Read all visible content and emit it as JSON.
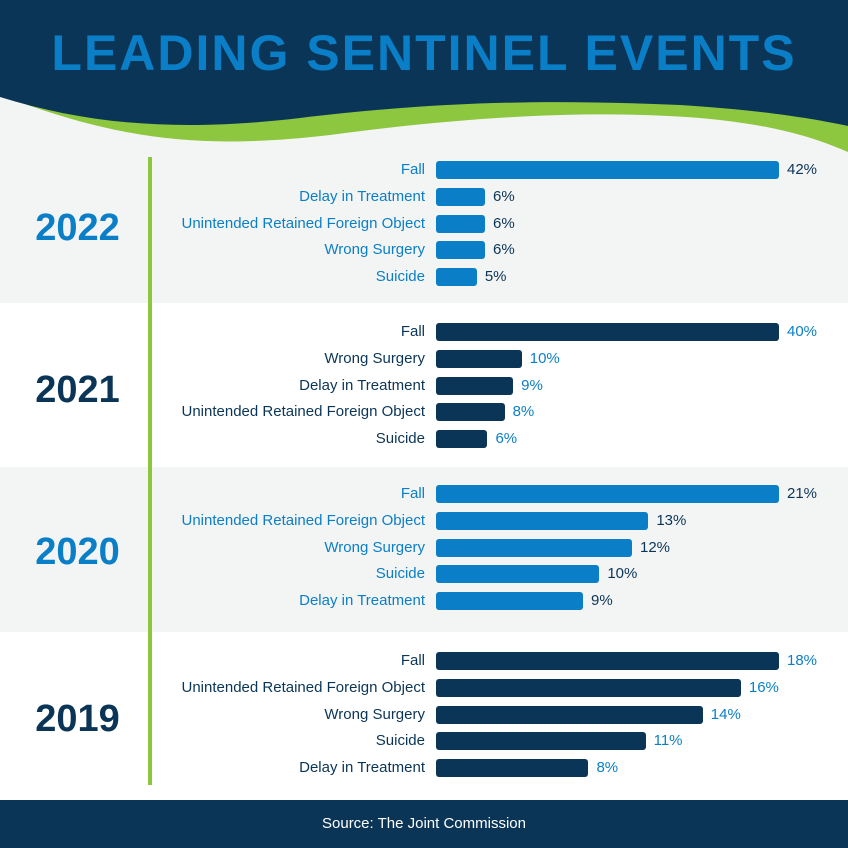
{
  "colors": {
    "navy": "#0b3557",
    "blue": "#0a7fc7",
    "green": "#8dc63f",
    "gray": "#f3f4f4"
  },
  "title": "LEADING SENTINEL EVENTS",
  "source": "Source: The Joint Commission",
  "chart_data": {
    "type": "bar",
    "orientation": "horizontal",
    "title": "LEADING SENTINEL EVENTS",
    "unit": "%",
    "groups": [
      {
        "year": "2022",
        "categories": [
          "Fall",
          "Delay in Treatment",
          "Unintended Retained Foreign Object",
          "Wrong Surgery",
          "Suicide"
        ],
        "values": [
          42,
          6,
          6,
          6,
          5
        ],
        "labels": [
          "42%",
          "6%",
          "6%",
          "6%",
          "5%"
        ]
      },
      {
        "year": "2021",
        "categories": [
          "Fall",
          "Wrong Surgery",
          "Delay in Treatment",
          "Unintended Retained Foreign Object",
          "Suicide"
        ],
        "values": [
          40,
          10,
          9,
          8,
          6
        ],
        "labels": [
          "40%",
          "10%",
          "9%",
          "8%",
          "6%"
        ]
      },
      {
        "year": "2020",
        "categories": [
          "Fall",
          "Unintended Retained Foreign Object",
          "Wrong Surgery",
          "Suicide",
          "Delay in Treatment"
        ],
        "values": [
          21,
          13,
          12,
          10,
          9
        ],
        "labels": [
          "21%",
          "13%",
          "12%",
          "10%",
          "9%"
        ]
      },
      {
        "year": "2019",
        "categories": [
          "Fall",
          "Unintended Retained Foreign Object",
          "Wrong Surgery",
          "Suicide",
          "Delay in Treatment"
        ],
        "values": [
          18,
          16,
          14,
          11,
          8
        ],
        "labels": [
          "18%",
          "16%",
          "14%",
          "11%",
          "8%"
        ]
      }
    ]
  }
}
